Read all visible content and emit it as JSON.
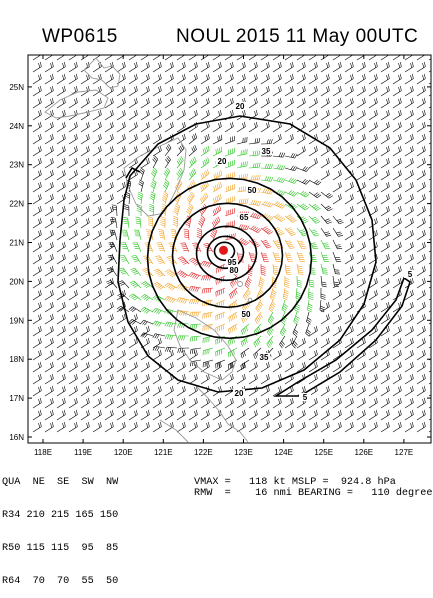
{
  "header": {
    "storm_id": "WP0615",
    "title": "NOUL 2015 11 May 00UTC"
  },
  "map": {
    "lat_labels": [
      "25N",
      "24N",
      "23N",
      "22N",
      "21N",
      "20N",
      "19N",
      "18N",
      "17N",
      "16N"
    ],
    "lon_labels": [
      "118E",
      "119E",
      "120E",
      "121E",
      "122E",
      "123E",
      "124E",
      "125E",
      "126E",
      "127E"
    ],
    "contour_labels": [
      "20",
      "35",
      "50",
      "65",
      "80",
      "95",
      "20",
      "35",
      "50",
      "20",
      "5",
      "5"
    ],
    "storm_center": {
      "lat": 20.8,
      "lon": 122.5
    },
    "colors": {
      "background": "#ffffff",
      "coastline": "#9a9a9a",
      "barb_default": "#000000",
      "barb_34kt": "#22c41a",
      "barb_50kt": "#f2a020",
      "barb_64kt": "#e02222",
      "center": "#e01818"
    }
  },
  "wind_radii": {
    "header": [
      "QUA",
      "NE",
      "SE",
      "SW",
      "NW"
    ],
    "rows": [
      {
        "label": "R34",
        "values": [
          "210",
          "215",
          "165",
          "150"
        ]
      },
      {
        "label": "R50",
        "values": [
          "115",
          "115",
          "95",
          "85"
        ]
      },
      {
        "label": "R64",
        "values": [
          "70",
          "70",
          "55",
          "50"
        ]
      }
    ]
  },
  "intensity": {
    "vmax_label": "VMAX",
    "vmax_value": "118",
    "vmax_unit": "kt",
    "mslp_label": "MSLP",
    "mslp_value": "924.8",
    "mslp_unit": "hPa",
    "rmw_label": "RMW",
    "rmw_value": "16",
    "rmw_unit": "nmi",
    "bearing_label": "BEARING",
    "bearing_value": "110",
    "bearing_unit": "degrees"
  }
}
